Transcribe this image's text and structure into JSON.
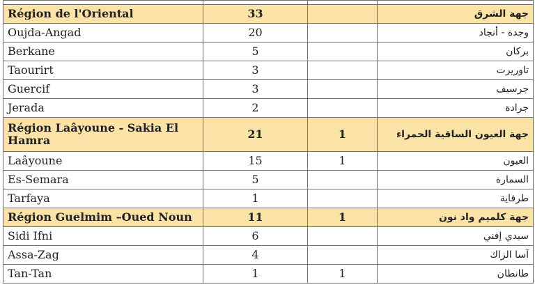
{
  "colors": {
    "region_row": "#fbe2a6",
    "border": "#6f6f6f"
  },
  "sections": [
    {
      "region": {
        "fr": "Région de l'Oriental",
        "count": "33",
        "extra": "",
        "ar": "جهة الشرق"
      },
      "rows": [
        {
          "fr": "Oujda-Angad",
          "count": "20",
          "extra": "",
          "ar": "وجدة - أنجاد"
        },
        {
          "fr": "Berkane",
          "count": "5",
          "extra": "",
          "ar": "بركان"
        },
        {
          "fr": "Taourirt",
          "count": "3",
          "extra": "",
          "ar": "تاوريرت"
        },
        {
          "fr": "Guercif",
          "count": "3",
          "extra": "",
          "ar": "جرسيف"
        },
        {
          "fr": "Jerada",
          "count": "2",
          "extra": "",
          "ar": "جرادة"
        }
      ]
    },
    {
      "region": {
        "fr": "Région Laâyoune - Sakia El Hamra",
        "count": "21",
        "extra": "1",
        "ar": "جهة العيون الساقية الحمراء"
      },
      "rows": [
        {
          "fr": "Laâyoune",
          "count": "15",
          "extra": "1",
          "ar": "العيون"
        },
        {
          "fr": "Es-Semara",
          "count": "5",
          "extra": "",
          "ar": "السمارة"
        },
        {
          "fr": "Tarfaya",
          "count": "1",
          "extra": "",
          "ar": "طرفاية"
        }
      ]
    },
    {
      "region": {
        "fr": "Région Guelmim –Oued Noun",
        "count": "11",
        "extra": "1",
        "ar": "جهة كلميم واد نون"
      },
      "rows": [
        {
          "fr": "Sidi Ifni",
          "count": "6",
          "extra": "",
          "ar": "سيدي إفني"
        },
        {
          "fr": "Assa-Zag",
          "count": "4",
          "extra": "",
          "ar": "آسا الزاك"
        },
        {
          "fr": "Tan-Tan",
          "count": "1",
          "extra": "1",
          "ar": "طانطان"
        }
      ]
    }
  ]
}
